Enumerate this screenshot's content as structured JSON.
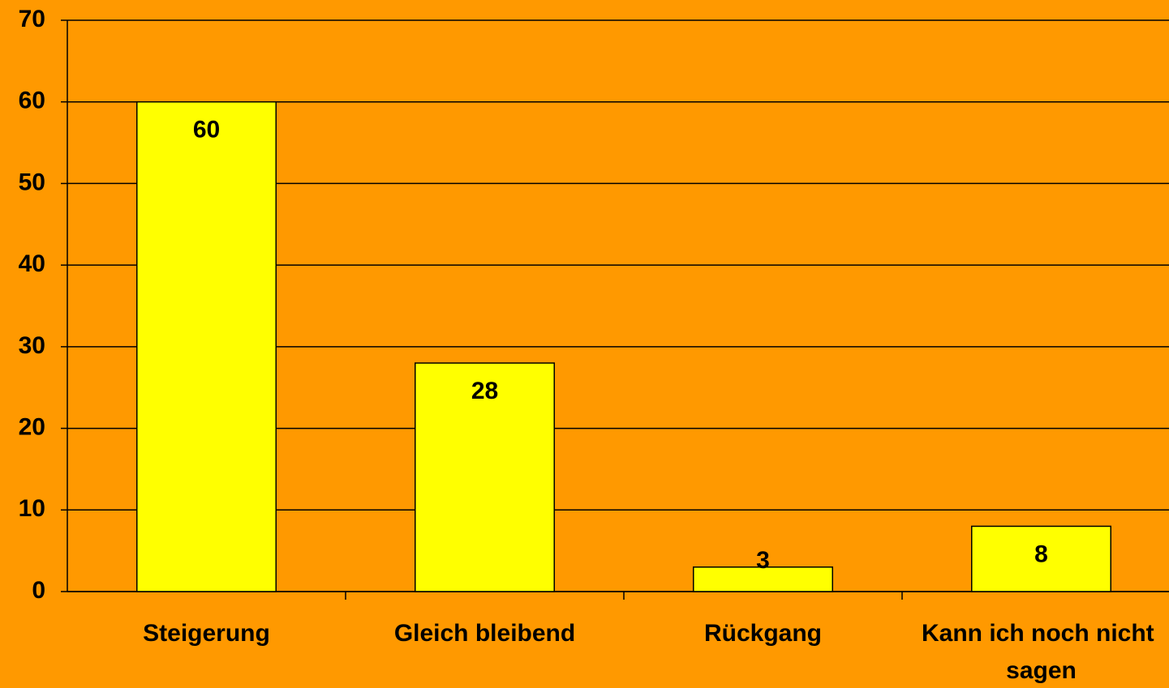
{
  "chart_data": {
    "type": "bar",
    "categories": [
      "Steigerung",
      "Gleich bleibend",
      "Rückgang",
      "Kann ich noch nicht sagen"
    ],
    "values": [
      60,
      28,
      3,
      8
    ],
    "color": "#ffff00",
    "ylim": [
      0,
      70
    ],
    "yticks": [
      0,
      10,
      20,
      30,
      40,
      50,
      60,
      70
    ],
    "grid": true
  }
}
